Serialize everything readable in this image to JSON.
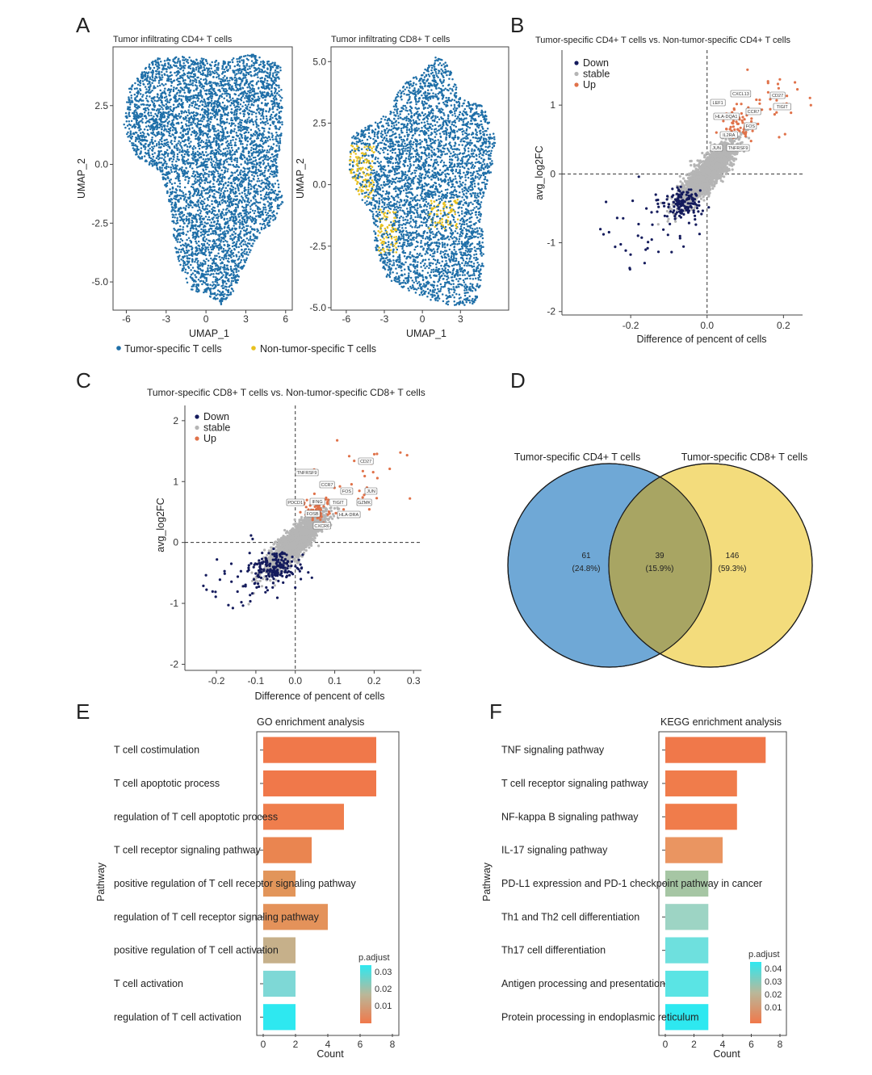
{
  "panels": {
    "A": {
      "label": "A",
      "legend": {
        "tumor": "Tumor-specific T cells",
        "nontumor": "Non-tumor-specific T cells",
        "tumor_color": "#1f6fa8",
        "nontumor_color": "#e8c11f"
      },
      "left": {
        "title": "Tumor infiltrating CD4+ T cells",
        "xlabel": "UMAP_1",
        "ylabel": "UMAP_2",
        "xticks": [
          "-6",
          "-3",
          "0",
          "3",
          "6"
        ],
        "yticks": [
          "2.5",
          "0.0",
          "-2.5",
          "-5.0"
        ]
      },
      "right": {
        "title": "Tumor infiltrating CD8+ T cells",
        "xlabel": "UMAP_1",
        "ylabel": "UMAP_2",
        "xticks": [
          "-6",
          "-3",
          "0",
          "3"
        ],
        "yticks": [
          "5.0",
          "2.5",
          "0.0",
          "-2.5",
          "-5.0"
        ]
      }
    },
    "B": {
      "label": "B",
      "title": "Tumor-specific CD4+ T cells vs. Non-tumor-specific CD4+ T cells",
      "xlabel": "Difference of pencent of cells",
      "ylabel": "avg_log2FC",
      "xticks": [
        "-0.2",
        "0.0",
        "0.2"
      ],
      "yticks": [
        "1",
        "0",
        "-1",
        "-2"
      ],
      "legend": [
        {
          "name": "Down",
          "color": "#141b5c"
        },
        {
          "name": "stable",
          "color": "#b5b5b5"
        },
        {
          "name": "Up",
          "color": "#e0724a"
        }
      ],
      "genes": [
        "CXCL13",
        "CD27",
        "LEF1",
        "TIGIT",
        "CCR7",
        "HLA-DQA1",
        "IL2RA",
        "FOS",
        "JUN",
        "TNFRSF9"
      ]
    },
    "C": {
      "label": "C",
      "title": "Tumor-specific CD8+ T cells vs. Non-tumor-specific CD8+ T cells",
      "xlabel": "Difference of pencent of cells",
      "ylabel": "avg_log2FC",
      "xticks": [
        "-0.2",
        "-0.1",
        "0.0",
        "0.1",
        "0.2",
        "0.3"
      ],
      "yticks": [
        "2",
        "1",
        "0",
        "-1",
        "-2"
      ],
      "legend": [
        {
          "name": "Down",
          "color": "#141b5c"
        },
        {
          "name": "stable",
          "color": "#b5b5b5"
        },
        {
          "name": "Up",
          "color": "#e0724a"
        }
      ],
      "genes": [
        "TNFRSF9",
        "CD27",
        "CCR7",
        "FOS",
        "JUN",
        "PDCD1",
        "IFNG",
        "TIGIT",
        "GZMK",
        "FOSB",
        "HLA-DRA",
        "CXCR6"
      ]
    },
    "D": {
      "label": "D",
      "left_title": "Tumor-specific CD4+ T cells",
      "right_title": "Tumor-specific CD8+ T cells",
      "left": {
        "count": "61",
        "pct": "(24.8%)",
        "color": "#6fa8d6"
      },
      "overlap": {
        "count": "39",
        "pct": "(15.9%)",
        "color": "#a8a563"
      },
      "right": {
        "count": "146",
        "pct": "(59.3%)",
        "color": "#f3dc7c"
      }
    },
    "E": {
      "label": "E",
      "title": "GO enrichment analysis",
      "ylabel": "Pathway",
      "xlabel": "Count",
      "xticks": [
        "0",
        "2",
        "4",
        "6",
        "8"
      ],
      "legend_title": "p.adjust",
      "legend_ticks": [
        "0.03",
        "0.02",
        "0.01"
      ]
    },
    "F": {
      "label": "F",
      "title": "KEGG enrichment analysis",
      "ylabel": "Pathway",
      "xlabel": "Count",
      "xticks": [
        "0",
        "2",
        "4",
        "6",
        "8"
      ],
      "legend_title": "p.adjust",
      "legend_ticks": [
        "0.04",
        "0.03",
        "0.02",
        "0.01"
      ]
    }
  },
  "chart_data": [
    {
      "type": "bar",
      "title": "GO enrichment analysis",
      "xlabel": "Count",
      "ylabel": "Pathway",
      "xlim": [
        0,
        8
      ],
      "categories": [
        "T cell costimulation",
        "T cell apoptotic process",
        "regulation of T cell apoptotic process",
        "T cell receptor signaling pathway",
        "positive regulation of T cell receptor signaling pathway",
        "regulation of T cell receptor signaling pathway",
        "positive regulation of T cell activation",
        "T cell activation",
        "regulation of T cell activation"
      ],
      "values": [
        7,
        7,
        5,
        3,
        2,
        4,
        2,
        2,
        2
      ],
      "colors": [
        "#f0784a",
        "#f0784a",
        "#ef7e4d",
        "#ea8550",
        "#e2955a",
        "#e4925a",
        "#c6b08a",
        "#7ed8d6",
        "#2ee8f0"
      ]
    },
    {
      "type": "bar",
      "title": "KEGG enrichment analysis",
      "xlabel": "Count",
      "ylabel": "Pathway",
      "xlim": [
        0,
        8
      ],
      "categories": [
        "TNF signaling pathway",
        "T cell receptor signaling pathway",
        "NF-kappa B signaling pathway",
        "IL-17 signaling pathway",
        "PD-L1 expression and PD-1 checkpoint pathway in cancer",
        "Th1 and Th2 cell differentiation",
        "Th17 cell differentiation",
        "Antigen processing and presentation",
        "Protein processing in endoplasmic reticulum"
      ],
      "values": [
        7,
        5,
        5,
        4,
        3,
        3,
        3,
        3,
        3
      ],
      "colors": [
        "#f0784a",
        "#f07c4b",
        "#f07c4b",
        "#ea9561",
        "#a6c6a4",
        "#9dd4c4",
        "#6ee0de",
        "#5ae4e4",
        "#2ee8f0"
      ]
    },
    {
      "type": "table",
      "title": "Venn diagram",
      "categories": [
        "Tumor-specific CD4+ T cells only",
        "Shared",
        "Tumor-specific CD8+ T cells only"
      ],
      "values": [
        61,
        39,
        146
      ],
      "percents": [
        "24.8%",
        "15.9%",
        "59.3%"
      ]
    },
    {
      "type": "scatter",
      "title": "Tumor-specific CD4+ T cells vs. Non-tumor-specific CD4+ T cells",
      "xlabel": "Difference of pencent of cells",
      "ylabel": "avg_log2FC",
      "xlim": [
        -0.38,
        0.25
      ],
      "ylim": [
        -2.05,
        1.8
      ],
      "series": [
        {
          "name": "Down"
        },
        {
          "name": "stable"
        },
        {
          "name": "Up"
        }
      ]
    },
    {
      "type": "scatter",
      "title": "Tumor-specific CD8+ T cells vs. Non-tumor-specific CD8+ T cells",
      "xlabel": "Difference of pencent of cells",
      "ylabel": "avg_log2FC",
      "xlim": [
        -0.28,
        0.32
      ],
      "ylim": [
        -2.1,
        2.25
      ],
      "series": [
        {
          "name": "Down"
        },
        {
          "name": "stable"
        },
        {
          "name": "Up"
        }
      ]
    },
    {
      "type": "scatter",
      "title": "Tumor infiltrating CD4+ T cells",
      "xlabel": "UMAP_1",
      "ylabel": "UMAP_2",
      "xlim": [
        -7,
        6.5
      ],
      "ylim": [
        -6.2,
        5.0
      ],
      "series": [
        {
          "name": "Tumor-specific T cells"
        },
        {
          "name": "Non-tumor-specific T cells"
        }
      ]
    },
    {
      "type": "scatter",
      "title": "Tumor infiltrating CD8+ T cells",
      "xlabel": "UMAP_1",
      "ylabel": "UMAP_2",
      "xlim": [
        -7.2,
        6.8
      ],
      "ylim": [
        -5.1,
        5.6
      ],
      "series": [
        {
          "name": "Tumor-specific T cells"
        },
        {
          "name": "Non-tumor-specific T cells"
        }
      ]
    }
  ]
}
